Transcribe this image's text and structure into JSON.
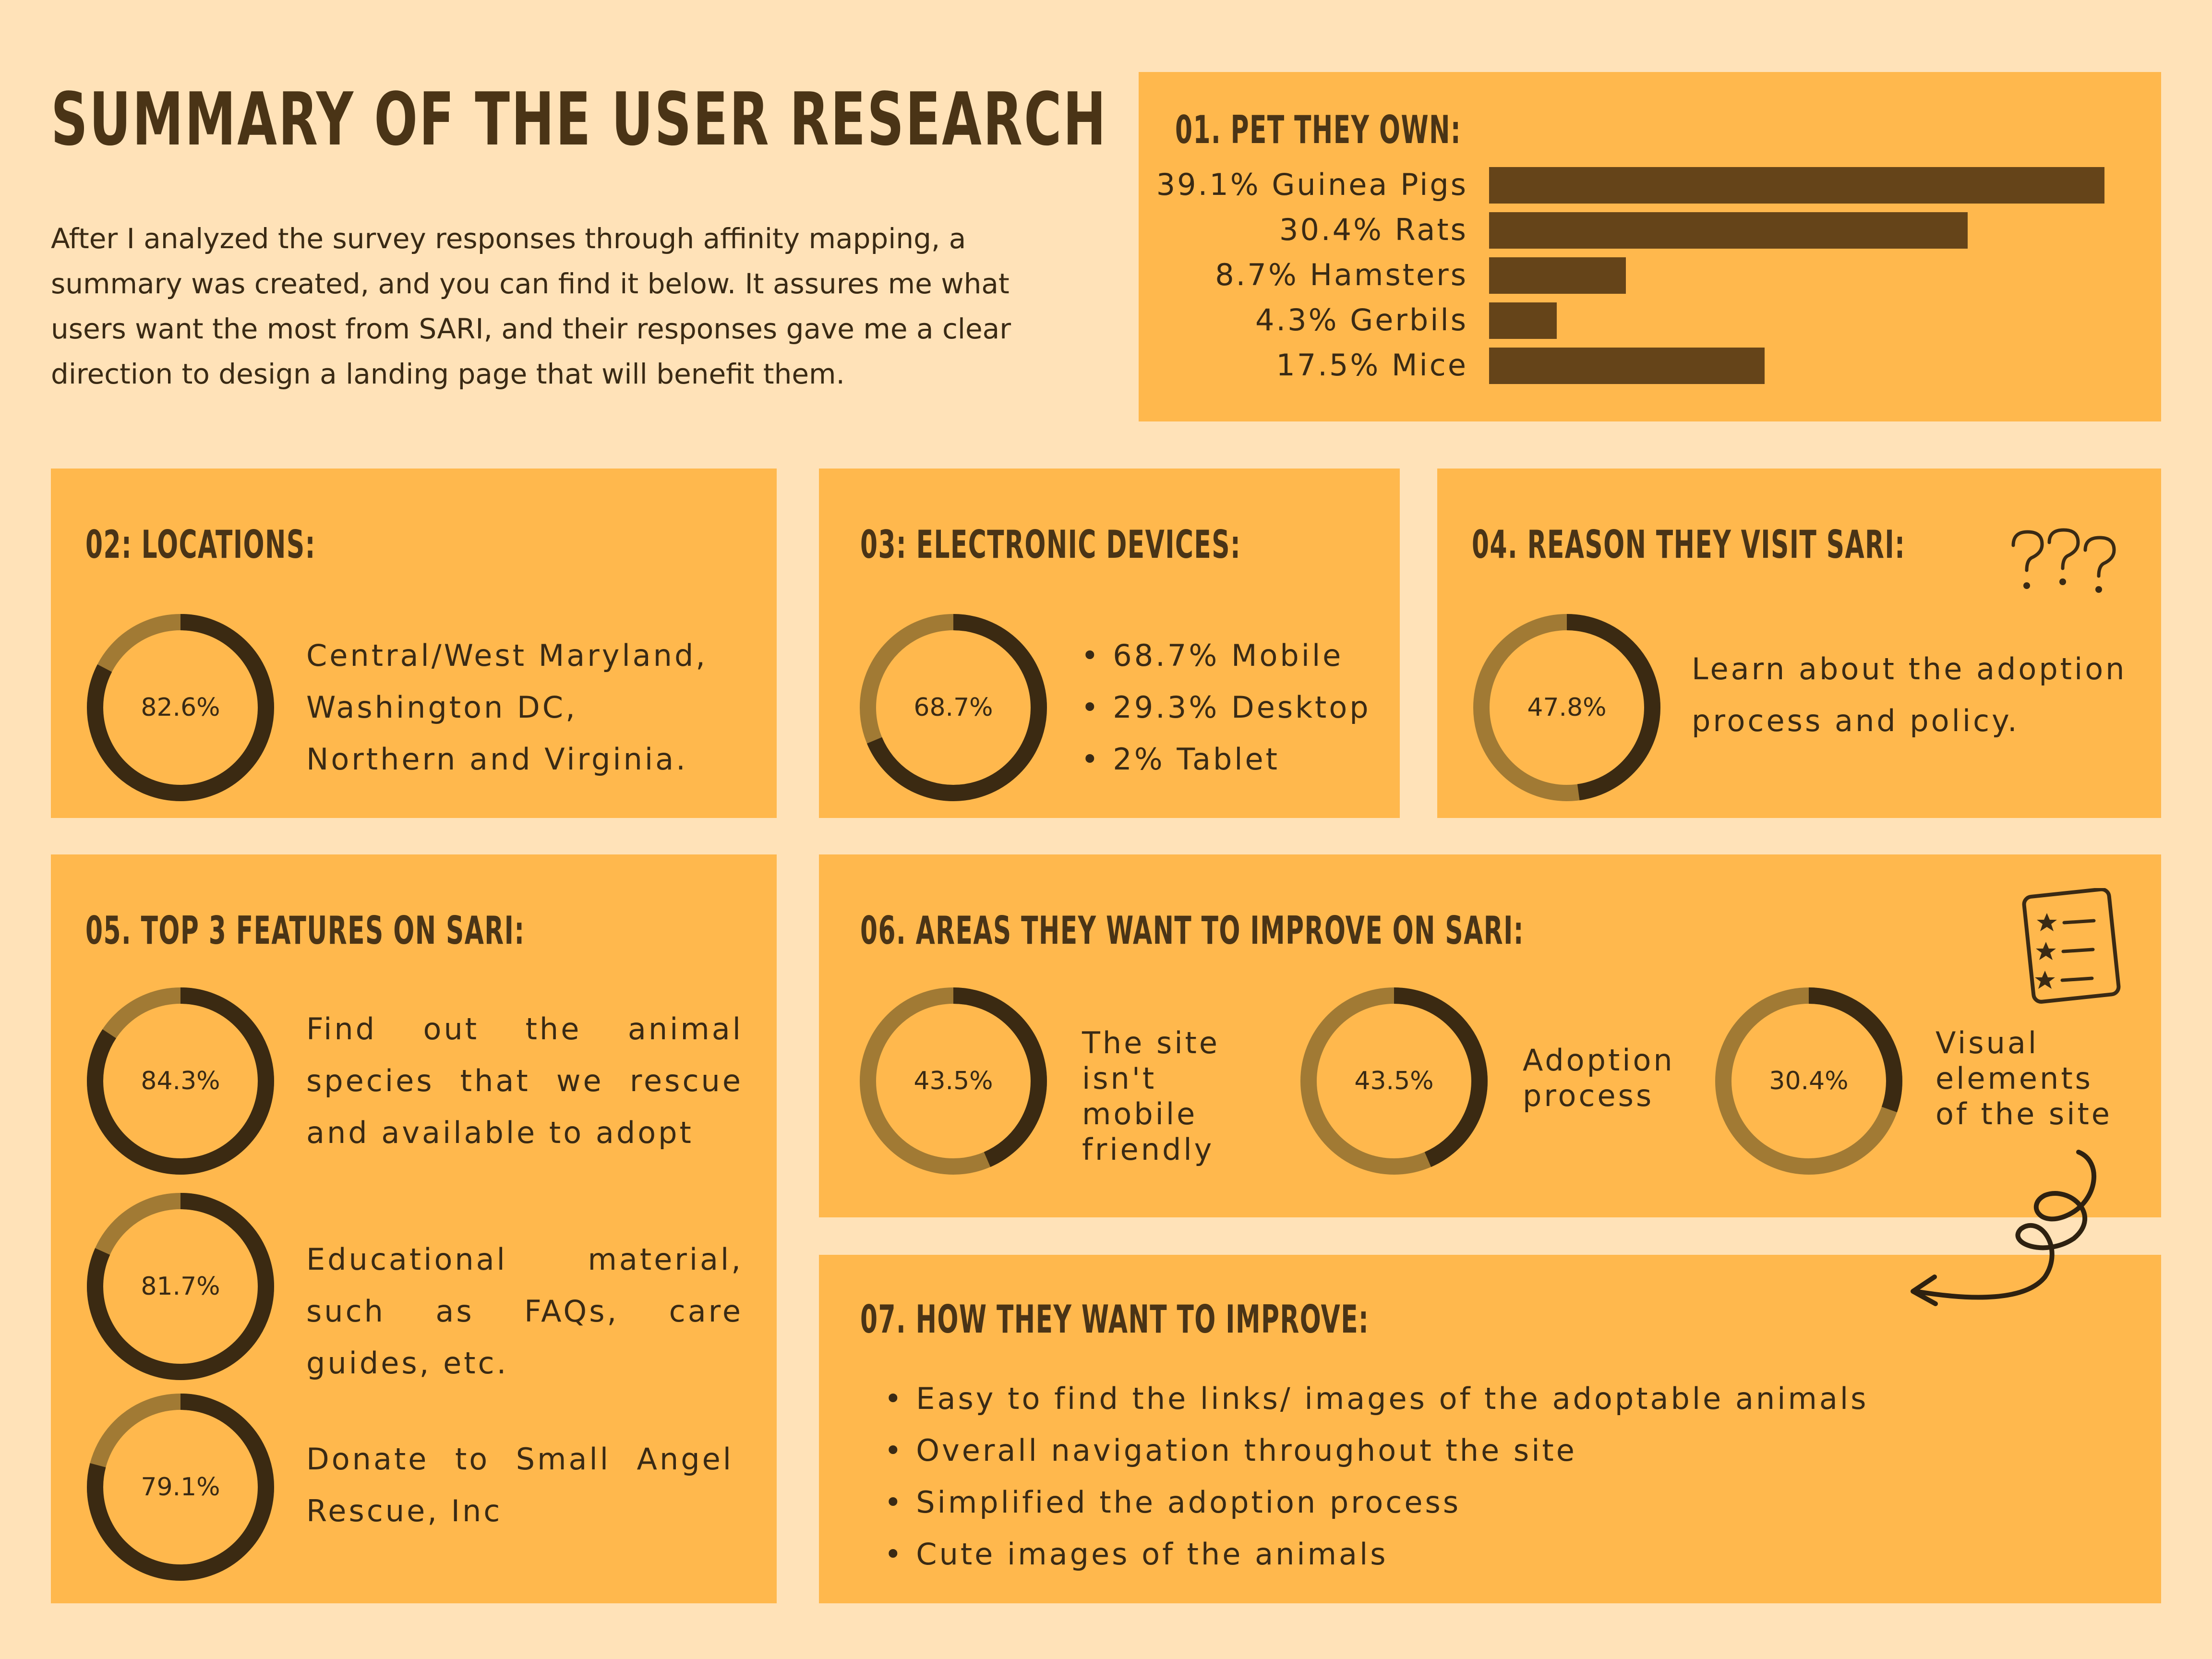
{
  "title": "SUMMARY OF THE USER RESEARCH",
  "intro": "After I analyzed the survey responses through affinity mapping, a summary was created, and you can find it below. It assures me what users want the most from SARI, and their responses gave me a clear direction to design a landing page that will benefit them.",
  "colors": {
    "background": "#FFE2B8",
    "card": "#FFB84D",
    "bar": "#654419",
    "donut_fill": "#3B2A12",
    "donut_track": "#A17A34"
  },
  "sections": {
    "pets": {
      "title": "01. PET THEY OWN:"
    },
    "locations": {
      "title": "02: LOCATIONS:",
      "percent": "82.6%",
      "text": "Central/West Maryland, Washington DC, Northern and Virginia."
    },
    "devices": {
      "title": "03: ELECTRONIC DEVICES:",
      "percent": "68.7%",
      "items": [
        "68.7% Mobile",
        "29.3% Desktop",
        "2% Tablet"
      ]
    },
    "reason": {
      "title": "04. REASON THEY VISIT SARI:",
      "percent": "47.8%",
      "text": "Learn about the adoption process and policy.",
      "icon": "question-marks-icon"
    },
    "features": {
      "title": "05. TOP 3 FEATURES ON SARI:",
      "items": [
        {
          "percent": "84.3%",
          "text": "Find out the animal species that we rescue and available to adopt"
        },
        {
          "percent": "81.7%",
          "text": "Educational material, such as FAQs, care guides, etc."
        },
        {
          "percent": "79.1%",
          "text": "Donate to Small Angel Rescue, Inc"
        }
      ]
    },
    "improve_areas": {
      "title": "06. AREAS THEY WANT TO IMPROVE ON SARI:",
      "icon": "star-checklist-icon",
      "items": [
        {
          "percent": "43.5%",
          "text": "The site isn't mobile friendly"
        },
        {
          "percent": "43.5%",
          "text": "Adoption process"
        },
        {
          "percent": "30.4%",
          "text": "Visual elements of the site"
        }
      ]
    },
    "how_improve": {
      "title": "07. HOW THEY WANT TO IMPROVE:",
      "items": [
        "Easy to find the links/ images of the adoptable animals",
        "Overall navigation throughout the site",
        "Simplified the adoption process",
        "Cute images of the animals"
      ]
    }
  },
  "chart_data": [
    {
      "type": "bar",
      "orientation": "horizontal",
      "title": "01. PET THEY OWN:",
      "categories": [
        "Guinea Pigs",
        "Rats",
        "Hamsters",
        "Gerbils",
        "Mice"
      ],
      "values": [
        39.1,
        30.4,
        8.7,
        4.3,
        17.5
      ],
      "labels": [
        "39.1% Guinea Pigs",
        "30.4% Rats",
        "8.7% Hamsters",
        "4.3% Gerbils",
        "17.5% Mice"
      ],
      "unit": "%"
    },
    {
      "type": "pie",
      "variant": "donut-set",
      "values": [
        82.6,
        68.7,
        47.8,
        84.3,
        81.7,
        79.1,
        43.5,
        43.5,
        30.4
      ],
      "unit": "%"
    }
  ]
}
